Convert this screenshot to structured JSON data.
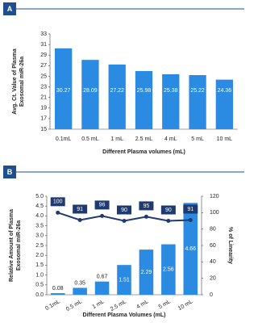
{
  "chart_data": [
    {
      "type": "bar",
      "panel_label": "A",
      "y_label": [
        "Avg. Ct. Value of Plasma",
        "Exosomal miR-26a"
      ],
      "x_label": "Different Plasma volumes (mL)",
      "categories": [
        "0.1mL",
        "0.5 mL",
        "1 mL",
        "2.5 mL",
        "4 mL",
        "5 mL",
        "10 mL"
      ],
      "values": [
        30.27,
        28.09,
        27.22,
        25.98,
        25.38,
        25.22,
        24.36
      ],
      "color": "#2b8ae2",
      "ylim": [
        15,
        33
      ],
      "yticks": [
        15,
        17,
        19,
        21,
        23,
        25,
        27,
        29,
        31,
        33
      ]
    },
    {
      "type": "bar_line",
      "panel_label": "B",
      "y_label": [
        "Relative Amount of Plasma",
        "Exosomal miR-26a"
      ],
      "y2_label": "% of Linearity",
      "x_label": "Different Plasma Volumes (mL)",
      "categories": [
        "0.1mL",
        "0.5 mL",
        "1 mL",
        "2.5 mL",
        "4 mL",
        "5 mL",
        "10 mL"
      ],
      "series": [
        {
          "name": "Relative Amount",
          "color": "#2b8ae2",
          "values": [
            0.08,
            0.35,
            0.67,
            1.51,
            2.29,
            2.56,
            4.66
          ]
        },
        {
          "name": "% of Linearity",
          "color": "#1f3a6e",
          "axis": "y2",
          "values": [
            100,
            91,
            96,
            90,
            95,
            90,
            91
          ]
        }
      ],
      "ylim": [
        0,
        5
      ],
      "yticks": [
        {
          "value": 0,
          "label": "0.0"
        },
        0.5,
        {
          "value": 1,
          "label": "1.0"
        },
        1.5,
        {
          "value": 2,
          "label": "2.0"
        },
        2.5,
        {
          "value": 3,
          "label": "3.0"
        },
        3.5,
        {
          "value": 4,
          "label": "4.0"
        },
        4.5,
        {
          "value": 5,
          "label": "5.0"
        }
      ],
      "y2lim": [
        0,
        120
      ],
      "y2ticks": [
        0,
        20,
        40,
        60,
        80,
        100,
        120
      ]
    }
  ]
}
